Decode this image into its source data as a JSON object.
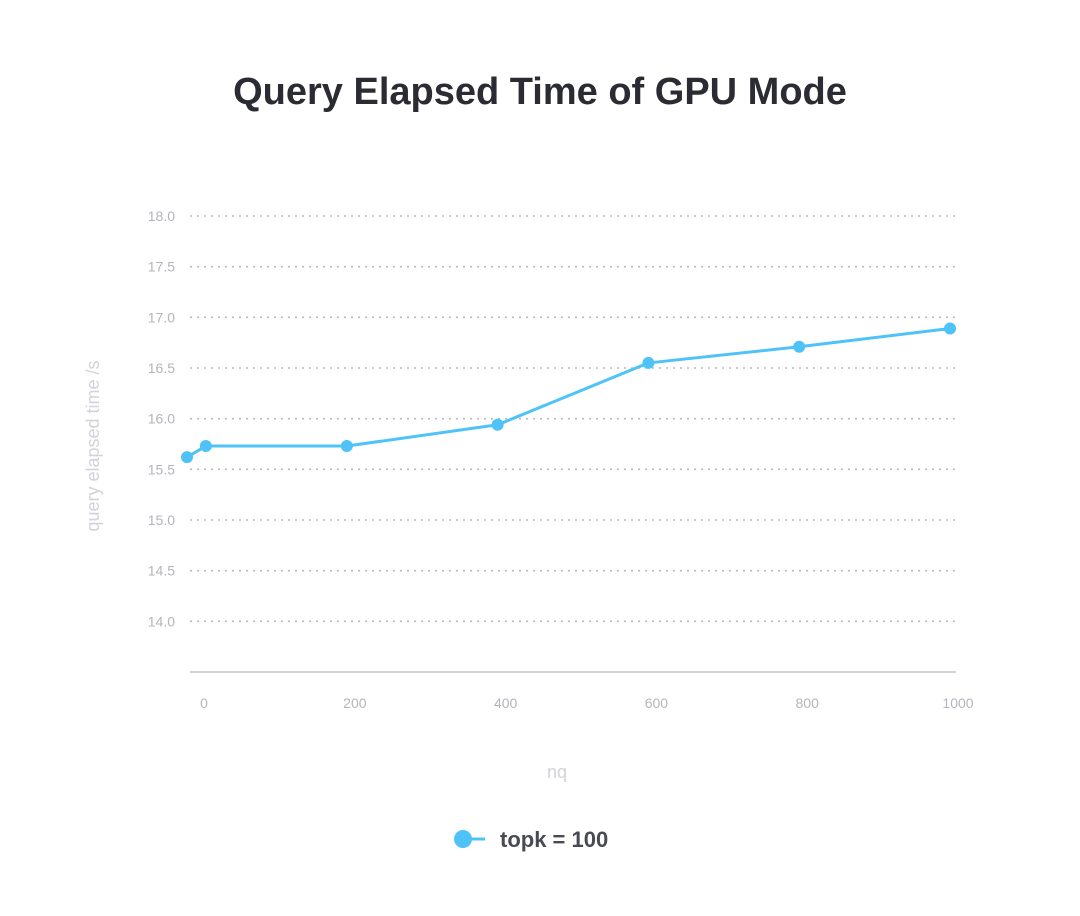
{
  "chart_data": {
    "type": "line",
    "title": "Query Elapsed Time of GPU Mode",
    "xlabel": "nq",
    "ylabel": "query elapsed time /s",
    "x_ticks": [
      0,
      200,
      400,
      600,
      800,
      1000
    ],
    "x_tick_labels": [
      "0",
      "200",
      "400",
      "600",
      "800",
      "1000"
    ],
    "y_ticks": [
      14.0,
      14.5,
      15.0,
      15.5,
      16.0,
      16.5,
      17.0,
      17.5,
      18.0
    ],
    "y_tick_labels": [
      "14.0",
      "14.5",
      "15.0",
      "15.5",
      "16.0",
      "16.5",
      "17.0",
      "17.5",
      "18.0"
    ],
    "xlim": [
      -12,
      1000
    ],
    "ylim": [
      13.5,
      18.0
    ],
    "grid": true,
    "legend_position": "bottom-center",
    "series": [
      {
        "name": "topk = 100",
        "color": "#4fc3f7",
        "x": [
          -12,
          13,
          200,
          400,
          600,
          800,
          1000
        ],
        "values": [
          15.62,
          15.73,
          15.73,
          15.94,
          16.55,
          16.71,
          16.89
        ]
      }
    ]
  }
}
